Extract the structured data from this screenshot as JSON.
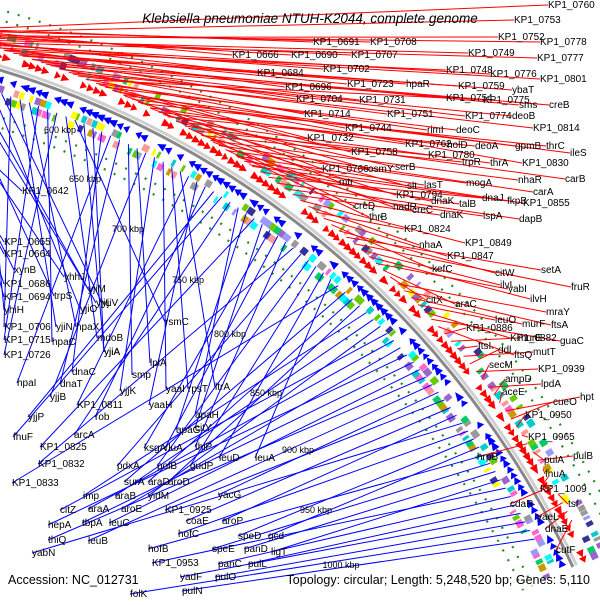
{
  "title": "Klebsiella pneumoniae NTUH-K2044, complete genome",
  "footer": {
    "accession": "Accession: NC_012731",
    "summary": "Topology: circular; Length: 5,248,520 bp; Genes: 5,110"
  },
  "colors": {
    "forward_strand": "#ff0000",
    "reverse_strand": "#0000ff",
    "backbone": "#888888",
    "tick_dots": "#228b22"
  },
  "scale_labels": [
    "600 kbp",
    "650 kbp",
    "700 kbp",
    "750 kbp",
    "800 kbp",
    "850 kbp",
    "900 kbp",
    "950 kbp",
    "1000 kbp"
  ],
  "genes_forward": [
    "KP1_0760",
    "KP1_0753",
    "KP1_0778",
    "KP1_0752",
    "KP1_0749",
    "KP1_0777",
    "KP1_0776",
    "KP1_0801",
    "KP1_0748",
    "ybaT",
    "KP1_0759",
    "sms",
    "creB",
    "KP1_0775",
    "KP1_0774",
    "deoB",
    "KP1_0814",
    "KP1_0754",
    "rimI",
    "deoC",
    "KP1_0830",
    "ileS",
    "gpmB",
    "thrC",
    "KP1_0762",
    "holD",
    "deoA",
    "thrA",
    "carB",
    "KP1_0780",
    "trpR",
    "nhaR",
    "carA",
    "mogA",
    "lasT",
    "KP1_0855",
    "fkpB",
    "talB",
    "dnaJ",
    "dapB",
    "lspA",
    "dnaK",
    "KP1_0849",
    "nhaA",
    "KP1_0824",
    "KP1_0847",
    "kefC",
    "citW",
    "setA",
    "fruR",
    "ilvI",
    "ilvH",
    "yabI",
    "araC",
    "citX",
    "mraY",
    "ftsA",
    "murF",
    "leuO",
    "KP1_0882",
    "guaC",
    "ftsQ",
    "KP1_0886",
    "murE",
    "ftsI",
    "mutT",
    "ddl",
    "KP1_0939",
    "secM",
    "lpdA",
    "ampD",
    "aceE",
    "hpt",
    "cueO",
    "KP1_0950",
    "KP1_0965",
    "hrpB",
    "pulA",
    "pulB",
    "fhuA",
    "KP1_1009",
    "cdaR",
    "tsf",
    "yaeL",
    "dnaE",
    "cutF"
  ],
  "genes_forward_core": [
    "KP1_0666",
    "KP1_0691",
    "KP1_0708",
    "KP1_0690",
    "KP1_0707",
    "KP1_0684",
    "KP1_0702",
    "KP1_0696",
    "KP1_0723",
    "hpaR",
    "KP1_0704",
    "KP1_0731",
    "KP1_0714",
    "KP1_0751",
    "KP1_0744",
    "KP1_0732",
    "KP1_0758",
    "KP1_0766",
    "osmY",
    "mtr",
    "serB",
    "slt",
    "creD",
    "KP1_0794",
    "nadR",
    "thrB",
    "creC",
    "dnaK"
  ],
  "genes_reverse": [
    "KP1_0642",
    "KP1_0655",
    "KP1_0664",
    "xynB",
    "yhhJ",
    "KP1_0686",
    "KP1_0694",
    "trpS",
    "yjiM",
    "yjiL",
    "yhiH",
    "yjiO",
    "yjiV",
    "KP1_0706",
    "yjiN",
    "hpaX",
    "KP1_0715",
    "hpaC",
    "KP1_0726",
    "mdoB",
    "rsmC",
    "yjiA",
    "yjiA",
    "dnaC",
    "hpaI",
    "dnaT",
    "smp",
    "lplA",
    "yjjB",
    "yjjK",
    "yaaI",
    "rpsT",
    "ltrA",
    "KP1_0811",
    "yaaH",
    "rob",
    "yjjP",
    "fhuF",
    "arcA",
    "apaH",
    "apaG",
    "KP1_0825",
    "citY",
    "ksgA",
    "rluA",
    "thiP",
    "KP1_0832",
    "pdxA",
    "polB",
    "gudP",
    "leuD",
    "leuA",
    "KP1_0833",
    "surA",
    "araD",
    "aroD",
    "imp",
    "araB",
    "yidM",
    "citZ",
    "araA",
    "aroE",
    "hepA",
    "tbpA",
    "leuC",
    "thiQ",
    "leuB",
    "yacG",
    "KP1_0925",
    "coaE",
    "aroP",
    "yabN",
    "hofC",
    "speD",
    "gcd",
    "hofB",
    "speE",
    "panD",
    "ligT",
    "KP1_0953",
    "panC",
    "pulL",
    "yadF",
    "pulO",
    "folK",
    "pulN"
  ]
}
